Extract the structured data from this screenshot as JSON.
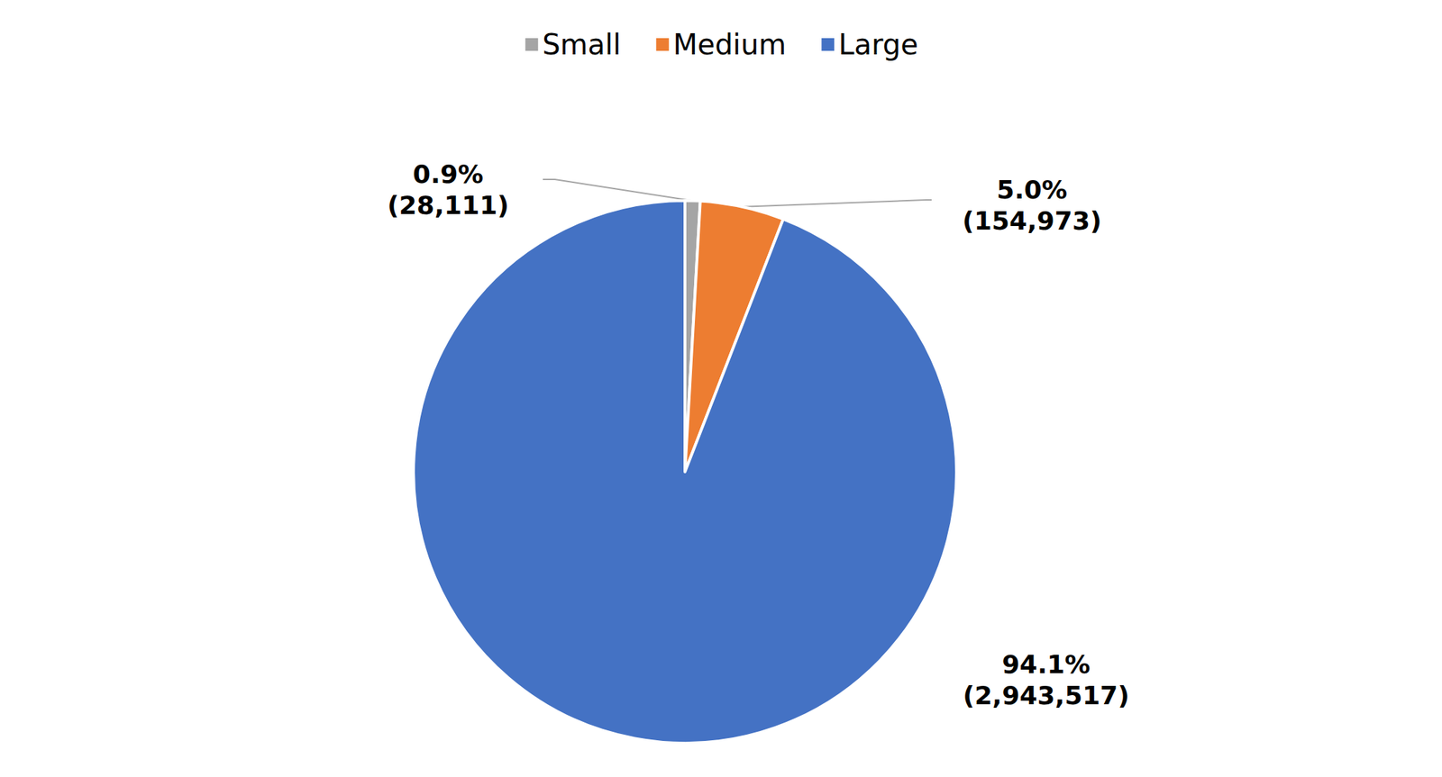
{
  "chart_data": {
    "type": "pie",
    "categories": [
      "Small",
      "Medium",
      "Large"
    ],
    "values": [
      0.9,
      5.0,
      94.1
    ],
    "value_labels": [
      "0.9%",
      "5.0%",
      "94.1%"
    ],
    "counts": [
      28111,
      154973,
      2943517
    ],
    "count_labels": [
      "(28,111)",
      "(154,973)",
      "(2,943,517)"
    ],
    "colors": [
      "#a5a5a5",
      "#ed7d31",
      "#4472c4"
    ],
    "legend": "top",
    "data_labels": true
  }
}
